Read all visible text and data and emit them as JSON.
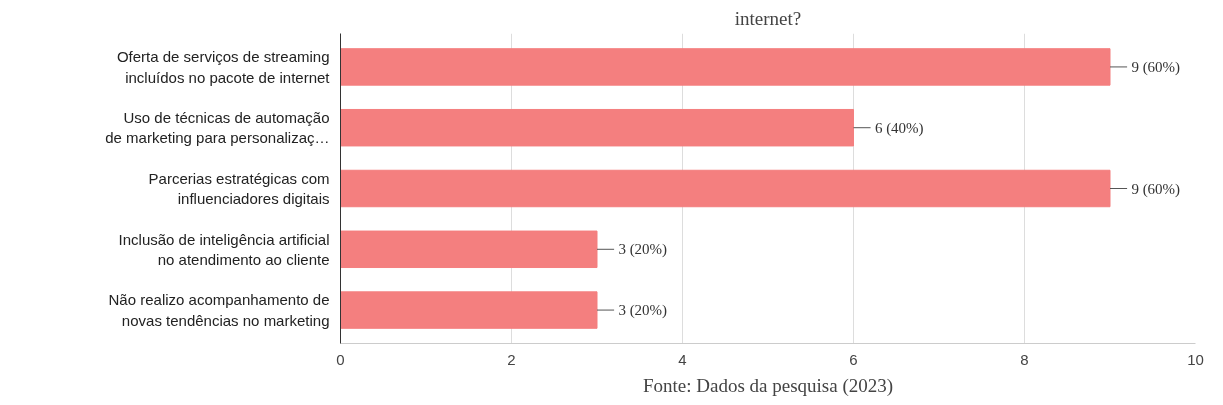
{
  "chart_data": {
    "type": "bar",
    "orientation": "horizontal",
    "title": "internet?",
    "categories": [
      "Oferta de serviços de streaming\nincluídos no pacote de internet",
      "Uso de técnicas de automação\nde marketing para personalizaç…",
      "Parcerias estratégicas com\ninfluenciadores digitais",
      "Inclusão de inteligência artificial\nno atendimento ao cliente",
      "Não realizo acompanhamento de\nnovas tendências no marketing"
    ],
    "values": [
      9,
      6,
      9,
      3,
      3
    ],
    "value_labels": [
      "9 (60%)",
      "6 (40%)",
      "9 (60%)",
      "3 (20%)",
      "3 (20%)"
    ],
    "color": "#f47f7f",
    "xlim": [
      0,
      10
    ],
    "xticks": [
      0,
      2,
      4,
      6,
      8,
      10
    ],
    "grid": "x",
    "annotations": [
      "Fonte: Dados da pesquisa (2023)"
    ]
  }
}
